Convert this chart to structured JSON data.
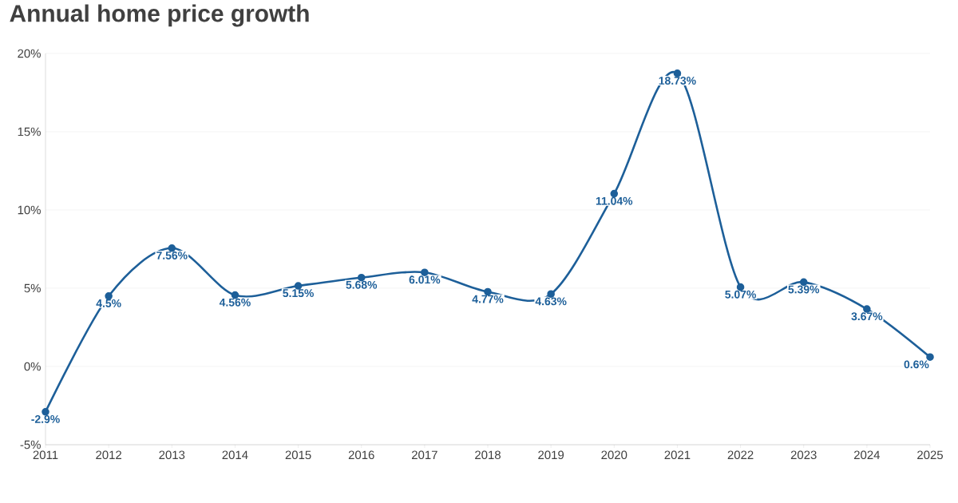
{
  "chart_data": {
    "type": "line",
    "title": "Annual home price growth",
    "categories": [
      "2011",
      "2012",
      "2013",
      "2014",
      "2015",
      "2016",
      "2017",
      "2018",
      "2019",
      "2020",
      "2021",
      "2022",
      "2023",
      "2024",
      "2025"
    ],
    "series": [
      {
        "color": "#1d5f99",
        "values": [
          -2.9,
          4.5,
          7.56,
          4.56,
          5.15,
          5.68,
          6.01,
          4.77,
          4.63,
          11.04,
          18.73,
          5.07,
          5.39,
          3.67,
          0.6
        ]
      }
    ],
    "value_labels": [
      "-2.9%",
      "4.5%",
      "7.56%",
      "4.56%",
      "5.15%",
      "5.68%",
      "6.01%",
      "4.77%",
      "4.63%",
      "11.04%",
      "18.73%",
      "5.07%",
      "5.39%",
      "3.67%",
      "0.6%"
    ],
    "ylim": [
      -5,
      20
    ],
    "yticks": [
      {
        "value": -5,
        "label": "-5%"
      },
      {
        "value": 0,
        "label": "0%"
      },
      {
        "value": 5,
        "label": "5%"
      },
      {
        "value": 10,
        "label": "10%"
      },
      {
        "value": 15,
        "label": "15%"
      },
      {
        "value": 20,
        "label": "20%"
      }
    ],
    "grid": "y",
    "marker": "circle",
    "line_style": "solid"
  }
}
